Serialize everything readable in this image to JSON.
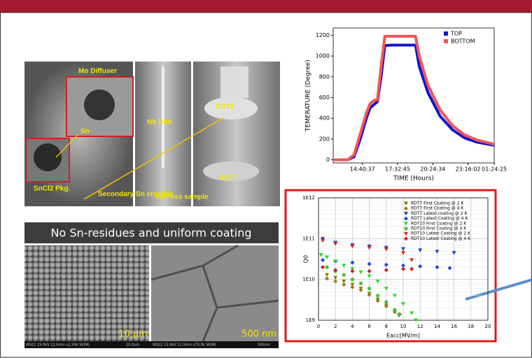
{
  "photos": {
    "labels": [
      "Mo Diffuser",
      "Nb Rod",
      "Sn",
      "RDT2",
      "RDT7",
      "SnCl2 Pkg.",
      "Secondary Sn crucible",
      "Witness sample"
    ]
  },
  "banner": "No Sn-residues and uniform coating",
  "sem": {
    "scales": [
      "10 µm",
      "500 nm"
    ],
    "captions": [
      "WS22 15.0kV 12.0mm x2.50k SE(M)",
      "10.0um",
      "WS22 15.0kV 12.0mm x70.0k SE(M)",
      "500nm"
    ]
  },
  "chart_data": [
    {
      "type": "line",
      "x_label": "TIME (Hours)",
      "y_label": "TEMERATURE (Degree)",
      "x": [
        0.3,
        1.5,
        2.0,
        2.5,
        3.0,
        3.3,
        3.6,
        3.9,
        4.2,
        4.5,
        5.0,
        6.0,
        7.0,
        7.3,
        8.0,
        9.0,
        10.0,
        11.0,
        12.0,
        13.4
      ],
      "series": [
        {
          "name": "TOP",
          "color": "#1414c8",
          "values": [
            0,
            0,
            30,
            200,
            400,
            500,
            530,
            560,
            800,
            1100,
            1105,
            1105,
            1105,
            900,
            650,
            420,
            290,
            210,
            170,
            140
          ]
        },
        {
          "name": "BOTTOM",
          "color": "#f25555",
          "values": [
            0,
            0,
            50,
            250,
            450,
            540,
            570,
            580,
            900,
            1190,
            1190,
            1190,
            1190,
            1000,
            720,
            480,
            330,
            240,
            190,
            150
          ]
        }
      ],
      "xlim": [
        0.3,
        13.4
      ],
      "ylim": [
        -30,
        1270
      ],
      "xticks": [
        {
          "value": 2.677,
          "label": "14:40:37"
        },
        {
          "value": 5.546,
          "label": "17:32:45"
        },
        {
          "value": 8.409,
          "label": "20:24:34"
        },
        {
          "value": 11.267,
          "label": "23:16:02"
        },
        {
          "value": 13.407,
          "label": "01:24:25"
        }
      ],
      "yticks": [
        0,
        200,
        400,
        600,
        800,
        1000,
        1200
      ],
      "grid": false,
      "legend": "upper right"
    },
    {
      "type": "scatter",
      "x_label": "Eacc[MV/m]",
      "y_label": "Q0",
      "log_y": true,
      "grid": true,
      "legend": "upper right",
      "xlim": [
        0,
        20
      ],
      "ylim": [
        1000000000,
        1000000000000
      ],
      "xticks": [
        0,
        2,
        4,
        6,
        8,
        10,
        12,
        14,
        16,
        18,
        20
      ],
      "yticks": [
        {
          "value": 1000000000,
          "label": "1E9"
        },
        {
          "value": 10000000000,
          "label": "1E10"
        },
        {
          "value": 100000000000,
          "label": "1E11"
        },
        {
          "value": 1000000000000,
          "label": "1E12"
        }
      ],
      "series": [
        {
          "name": "RDT7 First Coating @ 2 K",
          "color": "#808000",
          "marker": "triangle",
          "x": [
            1,
            2,
            3,
            4,
            5,
            6,
            7,
            8,
            9,
            9.5
          ],
          "values": [
            13000000000,
            11000000000,
            9000000000,
            7500000000,
            6000000000,
            4500000000,
            3200000000,
            2300000000,
            1600000000,
            1300000000
          ]
        },
        {
          "name": "RDT7 First Coating @ 4 K",
          "color": "#a07820",
          "marker": "diamond",
          "x": [
            1,
            2,
            3,
            4,
            5,
            6,
            7,
            8,
            9,
            9.6
          ],
          "values": [
            10500000000,
            9000000000,
            7500000000,
            6500000000,
            5500000000,
            4200000000,
            3000000000,
            2200000000,
            1600000000,
            1400000000
          ]
        },
        {
          "name": "RDT7 Latest coating @ 2 K",
          "color": "#1f3fd0",
          "marker": "triangle",
          "x": [
            0.5,
            2,
            4,
            6,
            8,
            10,
            12,
            14,
            16
          ],
          "values": [
            100000000000,
            80000000000,
            70000000000,
            65000000000,
            60000000000,
            56000000000,
            52000000000,
            48000000000,
            45000000000
          ]
        },
        {
          "name": "RDT7 Latest Coating @ 4 K",
          "color": "#2040e0",
          "marker": "diamond",
          "x": [
            0.5,
            2,
            4,
            6,
            8,
            10,
            12,
            14,
            15.5
          ],
          "values": [
            30000000000,
            28000000000,
            26000000000,
            24000000000,
            23000000000,
            22000000000,
            21000000000,
            20000000000,
            19000000000
          ]
        },
        {
          "name": "RDT10 First Coating @ 2 K",
          "color": "#20e020",
          "marker": "triangle",
          "x": [
            0.3,
            1,
            2,
            3,
            4,
            5,
            6,
            7,
            8,
            9,
            10,
            11,
            11.5
          ],
          "values": [
            40000000000,
            35000000000,
            28000000000,
            22000000000,
            18000000000,
            15000000000,
            12000000000,
            9000000000,
            6000000000,
            4000000000,
            2500000000,
            1500000000,
            1000000000
          ]
        },
        {
          "name": "RDT10 First Coating @ 4 K",
          "color": "#40c040",
          "marker": "circle",
          "x": [
            1,
            2,
            3,
            4,
            5,
            6,
            7,
            8,
            9,
            9.5
          ],
          "values": [
            20000000000,
            16000000000,
            13000000000,
            10000000000,
            8000000000,
            6000000000,
            4000000000,
            2800000000,
            1800000000,
            1400000000
          ]
        },
        {
          "name": "RDT10 Latest Coating @ 2 K",
          "color": "#e02020",
          "marker": "triangle",
          "x": [
            0.5,
            2,
            4,
            6,
            8,
            10,
            11
          ],
          "values": [
            90000000000,
            75000000000,
            65000000000,
            60000000000,
            55000000000,
            45000000000,
            30000000000
          ]
        },
        {
          "name": "RDT10 Latest Coating @ 4 K",
          "color": "#c02020",
          "marker": "diamond",
          "x": [
            0.5,
            2,
            4,
            6,
            8,
            10,
            11
          ],
          "values": [
            20000000000,
            17000000000,
            16000000000,
            16000000000,
            17000000000,
            18000000000,
            18000000000
          ]
        }
      ]
    }
  ]
}
